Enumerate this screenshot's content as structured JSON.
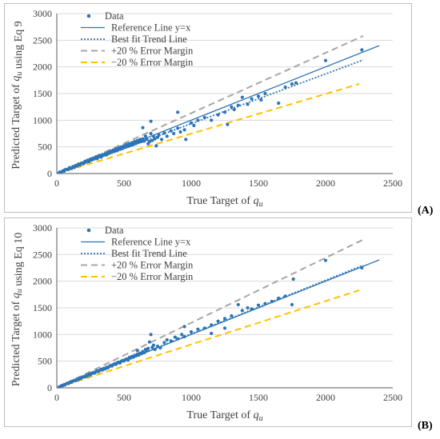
{
  "panel_labels": {
    "a": "(A)",
    "b": "(B)"
  },
  "colors": {
    "data": "#2e75b6",
    "reference": "#2e75b6",
    "trend": "#2e75b6",
    "plus20": "#a6a6a6",
    "minus20": "#ffc000",
    "grid": "#d9d9d9",
    "axis": "#595959",
    "text": "#404040"
  },
  "chart_data": [
    {
      "type": "scatter",
      "panel": "A",
      "xlabel": "True Target of q_u",
      "ylabel": "Predicted Target of q_u using Eq 9",
      "xlim": [
        0,
        2500
      ],
      "ylim": [
        0,
        3000
      ],
      "xticks": [
        0,
        500,
        1000,
        1500,
        2000,
        2500
      ],
      "yticks": [
        0,
        500,
        1000,
        1500,
        2000,
        2500,
        3000
      ],
      "grid": "horizontal",
      "legend_position": "top-left",
      "legend": [
        "Data",
        "Reference Line y=x",
        "Best fit Trend Line",
        "+20 % Error Margin",
        "−20 % Error Margin"
      ],
      "lines": {
        "reference": [
          [
            0,
            0
          ],
          [
            2400,
            2400
          ]
        ],
        "trend": [
          [
            0,
            0
          ],
          [
            2280,
            2130
          ]
        ],
        "plus20": [
          [
            0,
            0
          ],
          [
            2280,
            2580
          ]
        ],
        "minus20": [
          [
            0,
            0
          ],
          [
            2250,
            1680
          ]
        ]
      },
      "points": [
        [
          20,
          25
        ],
        [
          35,
          30
        ],
        [
          45,
          50
        ],
        [
          55,
          45
        ],
        [
          60,
          70
        ],
        [
          75,
          80
        ],
        [
          85,
          75
        ],
        [
          95,
          110
        ],
        [
          105,
          100
        ],
        [
          110,
          95
        ],
        [
          120,
          130
        ],
        [
          130,
          115
        ],
        [
          140,
          150
        ],
        [
          150,
          140
        ],
        [
          160,
          175
        ],
        [
          170,
          160
        ],
        [
          180,
          190
        ],
        [
          190,
          200
        ],
        [
          200,
          185
        ],
        [
          210,
          230
        ],
        [
          220,
          215
        ],
        [
          230,
          250
        ],
        [
          240,
          225
        ],
        [
          250,
          270
        ],
        [
          260,
          255
        ],
        [
          270,
          290
        ],
        [
          280,
          275
        ],
        [
          290,
          310
        ],
        [
          300,
          280
        ],
        [
          310,
          320
        ],
        [
          320,
          335
        ],
        [
          330,
          310
        ],
        [
          340,
          355
        ],
        [
          350,
          345
        ],
        [
          360,
          370
        ],
        [
          370,
          350
        ],
        [
          380,
          395
        ],
        [
          390,
          380
        ],
        [
          400,
          420
        ],
        [
          410,
          400
        ],
        [
          420,
          440
        ],
        [
          430,
          415
        ],
        [
          440,
          460
        ],
        [
          450,
          430
        ],
        [
          460,
          480
        ],
        [
          470,
          455
        ],
        [
          480,
          500
        ],
        [
          490,
          470
        ],
        [
          500,
          520
        ],
        [
          510,
          495
        ],
        [
          520,
          545
        ],
        [
          530,
          510
        ],
        [
          540,
          560
        ],
        [
          550,
          530
        ],
        [
          560,
          580
        ],
        [
          570,
          545
        ],
        [
          580,
          600
        ],
        [
          590,
          565
        ],
        [
          600,
          620
        ],
        [
          610,
          585
        ],
        [
          620,
          640
        ],
        [
          630,
          600
        ],
        [
          640,
          650
        ],
        [
          650,
          610
        ],
        [
          660,
          700
        ],
        [
          670,
          640
        ],
        [
          680,
          560
        ],
        [
          690,
          600
        ],
        [
          700,
          750
        ],
        [
          700,
          980
        ],
        [
          710,
          620
        ],
        [
          720,
          700
        ],
        [
          730,
          650
        ],
        [
          740,
          520
        ],
        [
          750,
          680
        ],
        [
          760,
          720
        ],
        [
          780,
          640
        ],
        [
          800,
          760
        ],
        [
          820,
          700
        ],
        [
          850,
          800
        ],
        [
          870,
          750
        ],
        [
          900,
          850
        ],
        [
          920,
          780
        ],
        [
          950,
          820
        ],
        [
          960,
          640
        ],
        [
          1000,
          950
        ],
        [
          1020,
          900
        ],
        [
          1050,
          1000
        ],
        [
          1100,
          1050
        ],
        [
          1150,
          1000
        ],
        [
          1200,
          1100
        ],
        [
          1250,
          1150
        ],
        [
          1270,
          920
        ],
        [
          1300,
          1250
        ],
        [
          1320,
          1200
        ],
        [
          1350,
          1280
        ],
        [
          1380,
          1430
        ],
        [
          1420,
          1300
        ],
        [
          1450,
          1400
        ],
        [
          1500,
          1450
        ],
        [
          1520,
          1380
        ],
        [
          1550,
          1500
        ],
        [
          1650,
          1320
        ],
        [
          1700,
          1620
        ],
        [
          1750,
          1680
        ],
        [
          1780,
          1700
        ],
        [
          2000,
          2120
        ],
        [
          2270,
          2320
        ],
        [
          640,
          860
        ],
        [
          900,
          1150
        ]
      ]
    },
    {
      "type": "scatter",
      "panel": "B",
      "xlabel": "True Target of q_u",
      "ylabel": "Predicted Target of q_u using Eq 10",
      "xlim": [
        0,
        2500
      ],
      "ylim": [
        0,
        3000
      ],
      "xticks": [
        0,
        500,
        1000,
        1500,
        2000,
        2500
      ],
      "yticks": [
        0,
        500,
        1000,
        1500,
        2000,
        2500,
        3000
      ],
      "grid": "horizontal",
      "legend_position": "top-left",
      "legend": [
        "Data",
        "Reference Line y=x",
        "Best fit Trend Line",
        "+20 % Error Margin",
        "−20 % Error Margin"
      ],
      "lines": {
        "reference": [
          [
            0,
            0
          ],
          [
            2400,
            2400
          ]
        ],
        "trend": [
          [
            0,
            0
          ],
          [
            2280,
            2300
          ]
        ],
        "plus20": [
          [
            0,
            0
          ],
          [
            2280,
            2780
          ]
        ],
        "minus20": [
          [
            0,
            0
          ],
          [
            2250,
            1830
          ]
        ]
      },
      "points": [
        [
          20,
          20
        ],
        [
          35,
          40
        ],
        [
          45,
          45
        ],
        [
          55,
          60
        ],
        [
          60,
          55
        ],
        [
          75,
          85
        ],
        [
          85,
          80
        ],
        [
          95,
          100
        ],
        [
          105,
          115
        ],
        [
          110,
          105
        ],
        [
          120,
          125
        ],
        [
          130,
          140
        ],
        [
          140,
          135
        ],
        [
          150,
          160
        ],
        [
          160,
          155
        ],
        [
          170,
          180
        ],
        [
          180,
          175
        ],
        [
          190,
          200
        ],
        [
          200,
          210
        ],
        [
          210,
          205
        ],
        [
          220,
          235
        ],
        [
          230,
          225
        ],
        [
          240,
          260
        ],
        [
          250,
          245
        ],
        [
          260,
          270
        ],
        [
          270,
          285
        ],
        [
          280,
          275
        ],
        [
          290,
          300
        ],
        [
          300,
          320
        ],
        [
          310,
          305
        ],
        [
          320,
          330
        ],
        [
          330,
          350
        ],
        [
          340,
          335
        ],
        [
          350,
          365
        ],
        [
          360,
          355
        ],
        [
          370,
          385
        ],
        [
          380,
          375
        ],
        [
          390,
          400
        ],
        [
          400,
          420
        ],
        [
          410,
          410
        ],
        [
          420,
          435
        ],
        [
          430,
          450
        ],
        [
          440,
          440
        ],
        [
          450,
          470
        ],
        [
          460,
          480
        ],
        [
          470,
          465
        ],
        [
          480,
          500
        ],
        [
          490,
          510
        ],
        [
          500,
          505
        ],
        [
          510,
          530
        ],
        [
          520,
          540
        ],
        [
          530,
          520
        ],
        [
          540,
          570
        ],
        [
          550,
          560
        ],
        [
          560,
          590
        ],
        [
          570,
          575
        ],
        [
          580,
          610
        ],
        [
          590,
          600
        ],
        [
          600,
          630
        ],
        [
          610,
          615
        ],
        [
          620,
          650
        ],
        [
          630,
          640
        ],
        [
          640,
          680
        ],
        [
          650,
          660
        ],
        [
          660,
          720
        ],
        [
          670,
          700
        ],
        [
          680,
          740
        ],
        [
          690,
          860
        ],
        [
          700,
          1000
        ],
        [
          710,
          760
        ],
        [
          720,
          800
        ],
        [
          730,
          720
        ],
        [
          750,
          780
        ],
        [
          770,
          750
        ],
        [
          800,
          850
        ],
        [
          820,
          900
        ],
        [
          850,
          880
        ],
        [
          880,
          950
        ],
        [
          900,
          920
        ],
        [
          930,
          1000
        ],
        [
          950,
          960
        ],
        [
          1000,
          1050
        ],
        [
          1050,
          1100
        ],
        [
          1100,
          1120
        ],
        [
          1150,
          1180
        ],
        [
          1200,
          1250
        ],
        [
          1250,
          1300
        ],
        [
          1300,
          1350
        ],
        [
          1350,
          1560
        ],
        [
          1380,
          1450
        ],
        [
          1420,
          1500
        ],
        [
          1450,
          1480
        ],
        [
          1500,
          1550
        ],
        [
          1550,
          1580
        ],
        [
          1600,
          1620
        ],
        [
          1650,
          1680
        ],
        [
          1700,
          1720
        ],
        [
          1750,
          1560
        ],
        [
          1760,
          2040
        ],
        [
          2000,
          2390
        ],
        [
          2270,
          2250
        ],
        [
          1250,
          1120
        ],
        [
          1150,
          1020
        ],
        [
          600,
          700
        ],
        [
          950,
          1150
        ]
      ]
    }
  ]
}
